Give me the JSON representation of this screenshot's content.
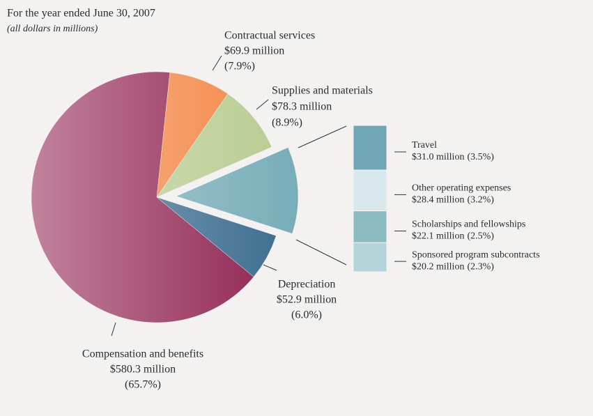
{
  "chart_data": {
    "type": "pie",
    "title": "For the year ended June 30, 2007",
    "subtitle": "(all dollars in millions)",
    "categories": [
      "Contractual services",
      "Supplies and materials",
      null,
      "Depreciation",
      "Compensation and benefits"
    ],
    "values": [
      69.9,
      78.3,
      101.7,
      52.9,
      580.3
    ],
    "value_labels": [
      "$69.9 million",
      "$78.3 million",
      null,
      "$52.9 million",
      "$580.3 million"
    ],
    "percents": [
      7.9,
      8.9,
      null,
      6.0,
      65.7
    ],
    "percent_labels": [
      "(7.9%)",
      "(8.9%)",
      null,
      "(6.0%)",
      "(65.7%)"
    ],
    "colors": [
      "#f2833f",
      "#b7cb8e",
      "#76adb8",
      "#386a8f",
      "#8e1e4d"
    ],
    "exploded": [
      false,
      false,
      true,
      false,
      false
    ],
    "breakout": {
      "categories": [
        "Travel",
        "Other operating expenses",
        "Scholarships and fellowships",
        "Sponsored program subcontracts"
      ],
      "values": [
        31.0,
        28.4,
        22.1,
        20.2
      ],
      "value_labels": [
        "$31.0 million",
        "$28.4 million",
        "$22.1 million",
        "$20.2 million"
      ],
      "percents": [
        3.5,
        3.2,
        2.5,
        2.3
      ],
      "percent_labels": [
        "(3.5%)",
        "(3.2%)",
        "(2.5%)",
        "(2.3%)"
      ],
      "colors": [
        "#6fa8b4",
        "#d9e8ec",
        "#8bbcc2",
        "#b3d4d9"
      ]
    }
  }
}
